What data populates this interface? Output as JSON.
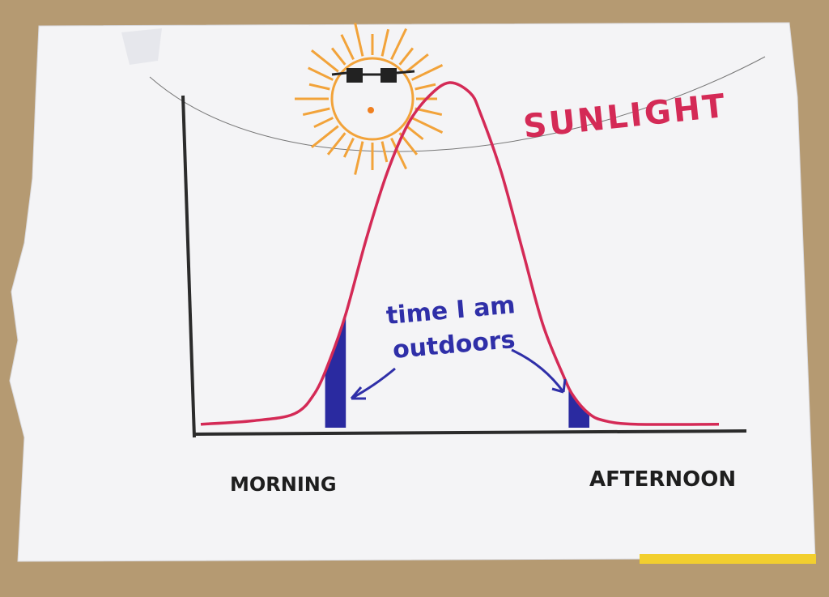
{
  "chart_data": {
    "type": "area",
    "title": "SUNLIGHT",
    "xlabel_left": "MORNING",
    "xlabel_right": "AFTERNOON",
    "ylabel": "",
    "annotation": "time I am outdoors",
    "annotation_lines": [
      "time I am",
      "outdoors"
    ],
    "xlim": [
      0,
      100
    ],
    "ylim": [
      0,
      100
    ],
    "series": [
      {
        "name": "SUNLIGHT",
        "x": [
          0,
          10,
          18,
          22,
          25,
          28,
          32,
          36,
          40,
          44,
          48,
          52,
          54,
          58,
          62,
          66,
          70,
          72,
          75,
          78,
          84,
          100
        ],
        "values": [
          1,
          2,
          4,
          10,
          20,
          33,
          55,
          74,
          88,
          96,
          100,
          97,
          91,
          74,
          52,
          30,
          15,
          9,
          4,
          2,
          1,
          1
        ]
      }
    ],
    "shaded_regions": [
      {
        "label": "time I am outdoors (morning)",
        "x_start": 24,
        "x_end": 28
      },
      {
        "label": "time I am outdoors (afternoon)",
        "x_start": 71,
        "x_end": 75
      }
    ]
  },
  "colors": {
    "curve": "#d42a56",
    "axis": "#2b2b2b",
    "shade": "#2a2aa0",
    "annotation": "#2f2fa8",
    "sun": "#f2a33a",
    "paper": "#f4f4f6",
    "table": "#b59a72",
    "tape": "#f2cf2e"
  },
  "icons": {
    "sun": "sun-with-sunglasses-icon"
  }
}
